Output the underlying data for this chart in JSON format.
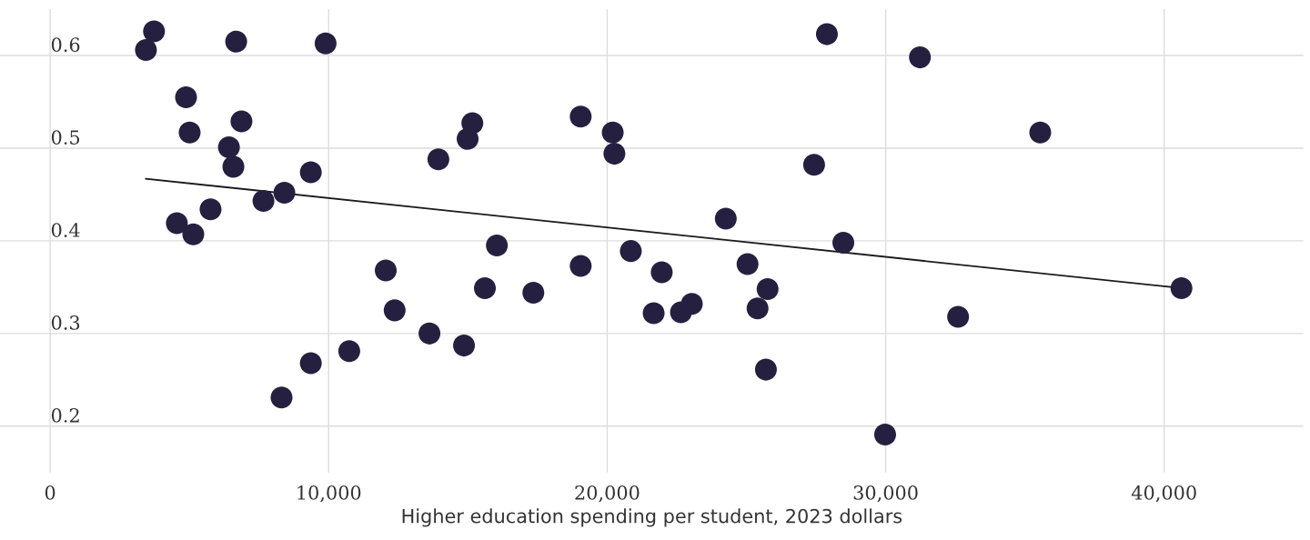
{
  "chart_data": {
    "type": "scatter",
    "xlabel": "Higher education spending per student, 2023 dollars",
    "xlim": [
      -1800,
      45000
    ],
    "xticks": [
      {
        "value": 0,
        "label": "0"
      },
      {
        "value": 10000,
        "label": "10,000"
      },
      {
        "value": 20000,
        "label": "20,000"
      },
      {
        "value": 30000,
        "label": "30,000"
      },
      {
        "value": 40000,
        "label": "40,000"
      }
    ],
    "ylim": [
      0.15,
      0.65
    ],
    "yticks": [
      0.2,
      0.3,
      0.4,
      0.5,
      0.6
    ],
    "grid": true,
    "marker": "circle",
    "legend": false,
    "series": [
      {
        "color": "#262040",
        "x": [
          3440,
          3730,
          6680,
          9890,
          4880,
          5010,
          6870,
          6420,
          6580,
          4550,
          5140,
          5760,
          7660,
          8410,
          9360,
          8310,
          9360,
          10740,
          12050,
          12370,
          13620,
          14860,
          13940,
          14990,
          15160,
          15610,
          16040,
          17350,
          19050,
          19050,
          20200,
          20260,
          20850,
          21670,
          21960,
          22650,
          23040,
          24260,
          25040,
          25400,
          25760,
          25700,
          27430,
          27890,
          28480,
          29980,
          31230,
          32600,
          35550,
          40620
        ],
        "values": [
          0.606,
          0.626,
          0.615,
          0.613,
          0.555,
          0.517,
          0.529,
          0.501,
          0.48,
          0.419,
          0.407,
          0.434,
          0.443,
          0.452,
          0.474,
          0.231,
          0.268,
          0.281,
          0.368,
          0.325,
          0.3,
          0.287,
          0.488,
          0.51,
          0.527,
          0.349,
          0.395,
          0.344,
          0.534,
          0.373,
          0.517,
          0.494,
          0.389,
          0.322,
          0.366,
          0.323,
          0.332,
          0.424,
          0.375,
          0.327,
          0.348,
          0.261,
          0.482,
          0.623,
          0.398,
          0.191,
          0.598,
          0.318,
          0.517,
          0.349
        ]
      },
      {
        "type": "line",
        "marker": "none",
        "color": "#1a1a1a",
        "x": [
          3440,
          40620
        ],
        "values": [
          0.467,
          0.349
        ]
      }
    ]
  }
}
